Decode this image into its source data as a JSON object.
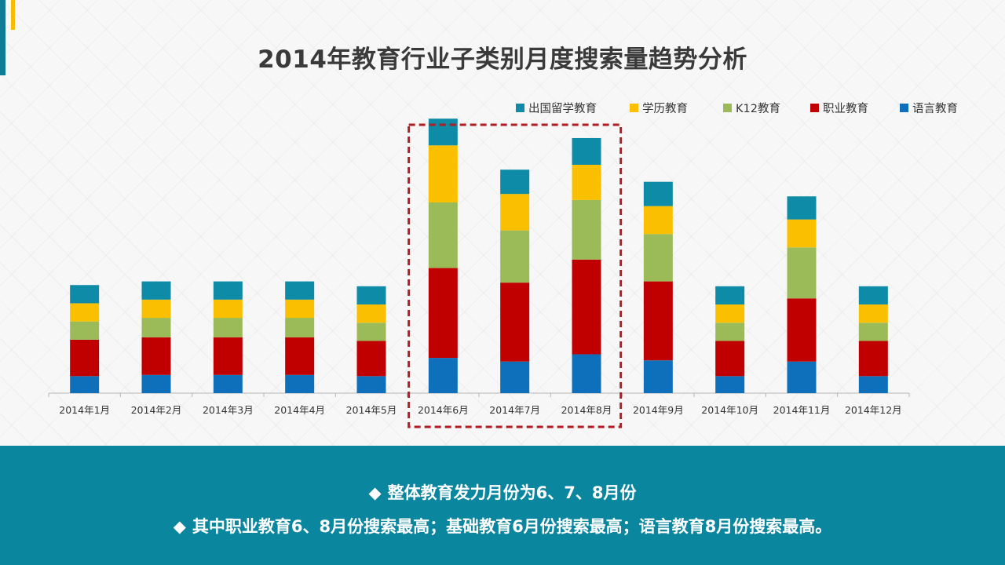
{
  "title": "2014年教育行业子类别月度搜索量趋势分析",
  "notes": {
    "bullet": "◆",
    "line1": "整体教育发力月份为6、7、8月份",
    "line2": "其中职业教育6、8月份搜索最高；基础教育6月份搜索最高；语言教育8月份搜索最高。"
  },
  "chart_data": {
    "type": "bar",
    "stacked": true,
    "title": "2014年教育行业子类别月度搜索量趋势分析",
    "categories": [
      "2014年1月",
      "2014年2月",
      "2014年3月",
      "2014年4月",
      "2014年5月",
      "2014年6月",
      "2014年7月",
      "2014年8月",
      "2014年9月",
      "2014年10月",
      "2014年11月",
      "2014年12月"
    ],
    "series": [
      {
        "name": "语言教育",
        "color": "#0e6fba",
        "values": [
          7,
          7.5,
          7.5,
          7.5,
          7,
          14.5,
          13,
          16,
          13.5,
          7,
          13,
          7
        ]
      },
      {
        "name": "职业教育",
        "color": "#c00000",
        "values": [
          15,
          15.5,
          15.5,
          15.5,
          14.5,
          37,
          32.5,
          39,
          32.5,
          14.5,
          26,
          14.5
        ]
      },
      {
        "name": "K12教育",
        "color": "#9bbb59",
        "values": [
          7.5,
          8,
          8,
          8,
          7.5,
          27,
          21.5,
          24.5,
          19.5,
          7.5,
          21,
          7.5
        ]
      },
      {
        "name": "学历教育",
        "color": "#fac000",
        "values": [
          7.5,
          7.5,
          7.5,
          7.5,
          7.5,
          23.5,
          15,
          14.5,
          11.5,
          7.5,
          11.5,
          7.5
        ]
      },
      {
        "name": "出国留学教育",
        "color": "#0e8ba7",
        "values": [
          7.5,
          7.5,
          7.5,
          7.5,
          7.5,
          11,
          10,
          11,
          10,
          7.5,
          9.5,
          7.5
        ]
      }
    ],
    "legend_order": [
      "出国留学教育",
      "学历教育",
      "K12教育",
      "职业教育",
      "语言教育"
    ],
    "legend_position": "top-right",
    "ylim": [
      0,
      115
    ],
    "y_axis_visible": false,
    "grid": false,
    "highlight": {
      "from": "2014年6月",
      "to": "2014年8月",
      "style": "dashed",
      "color": "#b01e23"
    }
  }
}
